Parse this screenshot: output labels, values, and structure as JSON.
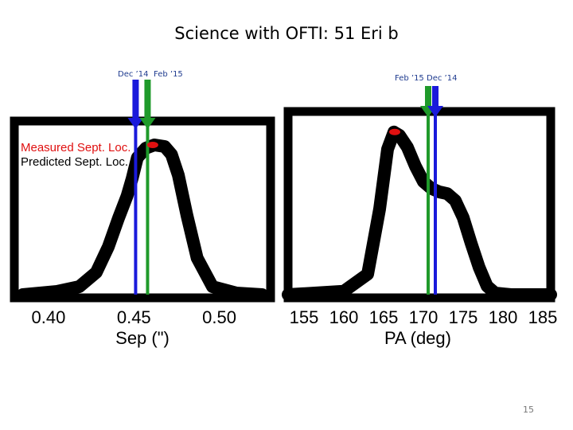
{
  "slide": {
    "title": "Science with OFTI: 51 Eri b",
    "page_number": "15"
  },
  "colors": {
    "dec14_marker": "#1a1adb",
    "feb15_marker": "#1f9a2a",
    "measured": "#e01010",
    "curve": "#000000"
  },
  "top_labels": {
    "left_dec14": "Dec ’14",
    "left_feb15": "Feb ’15",
    "right_feb15": "Feb ’15",
    "right_dec14": "Dec ’14"
  },
  "chart_data": [
    {
      "type": "line",
      "xlabel": "Sep (\")",
      "ylabel": "",
      "xlim": [
        0.38,
        0.53
      ],
      "x_ticks": [
        "0.40",
        "0.45",
        "0.50"
      ],
      "x_tick_values": [
        0.4,
        0.45,
        0.5
      ],
      "ylim": [
        0,
        1.0
      ],
      "series": [
        {
          "x": [
            0.385,
            0.405,
            0.418,
            0.428,
            0.435,
            0.441,
            0.446,
            0.449,
            0.452,
            0.457,
            0.462,
            0.468,
            0.472,
            0.476,
            0.481,
            0.487,
            0.496,
            0.51,
            0.525
          ],
          "y": [
            0.0,
            0.02,
            0.05,
            0.14,
            0.3,
            0.48,
            0.62,
            0.73,
            0.86,
            0.92,
            0.94,
            0.93,
            0.88,
            0.75,
            0.5,
            0.23,
            0.05,
            0.01,
            0.0
          ]
        }
      ],
      "vlines": [
        {
          "label": "Dec ’14",
          "x": 0.451,
          "color": "#1a1adb"
        },
        {
          "label": "Feb ’15",
          "x": 0.458,
          "color": "#1f9a2a"
        }
      ],
      "measured_point": {
        "x": 0.461,
        "y": 0.94
      },
      "legend": [
        "Measured Sept. Loc.",
        "Predicted Sept. Loc."
      ],
      "legend_position": "upper-left"
    },
    {
      "type": "line",
      "xlabel": "PA (deg)",
      "ylabel": "",
      "xlim": [
        153,
        186
      ],
      "x_ticks": [
        "155",
        "160",
        "165",
        "170",
        "175",
        "180",
        "185"
      ],
      "x_tick_values": [
        155,
        160,
        165,
        170,
        175,
        180,
        185
      ],
      "ylim": [
        0,
        1.0
      ],
      "series": [
        {
          "x": [
            153,
            160,
            163,
            164.5,
            165.5,
            166.3,
            167,
            168,
            169,
            170,
            171,
            172,
            173,
            174,
            175,
            176,
            177,
            178,
            179,
            181,
            186
          ],
          "y": [
            0.0,
            0.02,
            0.12,
            0.5,
            0.85,
            0.95,
            0.93,
            0.86,
            0.75,
            0.66,
            0.62,
            0.6,
            0.59,
            0.55,
            0.45,
            0.3,
            0.16,
            0.05,
            0.01,
            0.0,
            0.0
          ]
        }
      ],
      "vlines": [
        {
          "label": "Feb ’15",
          "x": 170.6,
          "color": "#1f9a2a"
        },
        {
          "label": "Dec ’14",
          "x": 171.5,
          "color": "#1a1adb"
        }
      ],
      "measured_point": {
        "x": 166.4,
        "y": 0.95
      }
    }
  ]
}
